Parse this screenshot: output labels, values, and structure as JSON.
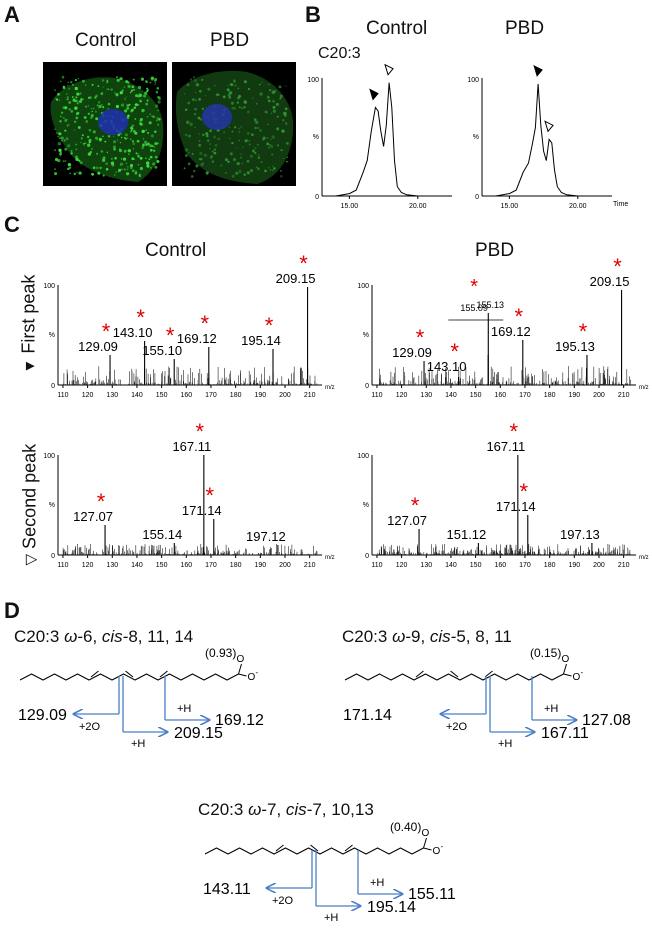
{
  "panels": {
    "A": {
      "letter": "A",
      "images": [
        {
          "title": "Control",
          "membrane_color": "#1a7a1a",
          "nucleus_color": "#1f2fb0",
          "spot_color": "#3ee23e"
        },
        {
          "title": "PBD",
          "membrane_color": "#1f6a1f",
          "nucleus_color": "#2535a8",
          "spot_color": "#2f9a2f"
        }
      ]
    },
    "B": {
      "letter": "B",
      "label": "C20:3",
      "titles": [
        "Control",
        "PBD"
      ],
      "y_ticks": [
        "100",
        "%",
        "0"
      ],
      "x_ticks": [
        "15.00",
        "20.00"
      ],
      "x_unit": "Time"
    },
    "C": {
      "letter": "C",
      "titles": [
        "Control",
        "PBD"
      ],
      "row_labels": [
        "First peak",
        "Second peak"
      ],
      "y_ticks": [
        "100",
        "%",
        "0"
      ],
      "x_unit": "m/z",
      "star": "*",
      "inset_label": "155.13",
      "inset_peak": "155.09"
    },
    "D": {
      "letter": "D",
      "structures": [
        {
          "title_parts": [
            "C20:3 ",
            "ω",
            "-6, ",
            "cis",
            "-8, 11, 14"
          ],
          "score": "(0.93)",
          "left_ion": "129.09",
          "right_ion": "169.12",
          "bottom_ion": "209.15",
          "left_mod": "+2O",
          "right_mod": "+H",
          "bottom_mod": "+H"
        },
        {
          "title_parts": [
            "C20:3 ",
            "ω",
            "-9, ",
            "cis",
            "-5, 8, 11"
          ],
          "score": "(0.15)",
          "left_ion": "171.14",
          "right_ion": "127.08",
          "bottom_ion": "167.11",
          "left_mod": "+2O",
          "right_mod": "+H",
          "bottom_mod": "+H"
        },
        {
          "title_parts": [
            "C20:3 ",
            "ω",
            "-7, ",
            "cis",
            "-7, 10,13"
          ],
          "score": "(0.40)",
          "left_ion": "143.11",
          "right_ion": "155.11",
          "bottom_ion": "195.14",
          "left_mod": "+2O",
          "right_mod": "+H",
          "bottom_mod": "+H"
        }
      ],
      "carboxylate": {
        "O": "O",
        "charge": "-"
      }
    }
  },
  "chart_data": [
    {
      "type": "line",
      "title": "Control",
      "x": [
        13.0,
        14.0,
        15.0,
        15.5,
        16.0,
        16.3,
        16.6,
        16.9,
        17.1,
        17.3,
        17.5,
        17.7,
        17.9,
        18.1,
        18.3,
        18.5,
        18.8,
        19.2,
        20.0,
        21.0,
        22.0
      ],
      "values": [
        0,
        0,
        2,
        5,
        20,
        30,
        55,
        75,
        72,
        55,
        42,
        60,
        96,
        75,
        30,
        8,
        3,
        1,
        0,
        0,
        0
      ],
      "xlim": [
        13,
        22.5
      ],
      "ylim": [
        0,
        100
      ],
      "markers": [
        {
          "kind": "filled",
          "x": 16.8
        },
        {
          "kind": "open",
          "x": 17.9
        }
      ]
    },
    {
      "type": "line",
      "title": "PBD",
      "x": [
        13.0,
        14.0,
        15.0,
        15.5,
        16.0,
        16.4,
        16.7,
        16.9,
        17.1,
        17.3,
        17.5,
        17.7,
        17.9,
        18.1,
        18.3,
        18.5,
        18.8,
        19.2,
        20.0,
        21.0,
        22.0
      ],
      "values": [
        0,
        0,
        2,
        5,
        20,
        28,
        45,
        58,
        95,
        60,
        38,
        30,
        48,
        45,
        22,
        8,
        3,
        1,
        0,
        0,
        0
      ],
      "xlim": [
        13,
        22.5
      ],
      "ylim": [
        0,
        100
      ],
      "markers": [
        {
          "kind": "filled",
          "x": 17.1
        },
        {
          "kind": "open",
          "x": 17.9
        }
      ]
    },
    {
      "type": "bar",
      "title": "Control",
      "series": "First peak",
      "xlim": [
        108,
        215
      ],
      "ylim": [
        0,
        100
      ],
      "x_ticks": [
        110,
        120,
        130,
        140,
        150,
        160,
        170,
        180,
        190,
        200,
        210
      ],
      "peaks": [
        {
          "mz": 129.09,
          "value": 30,
          "star": true
        },
        {
          "mz": 143.1,
          "value": 44,
          "star": true
        },
        {
          "mz": 155.1,
          "value": 26,
          "star": true
        },
        {
          "mz": 169.12,
          "value": 38,
          "star": true
        },
        {
          "mz": 195.14,
          "value": 36,
          "star": true
        },
        {
          "mz": 209.15,
          "value": 98,
          "star": true
        }
      ]
    },
    {
      "type": "bar",
      "title": "PBD",
      "series": "First peak",
      "xlim": [
        108,
        215
      ],
      "ylim": [
        0,
        100
      ],
      "x_ticks": [
        110,
        120,
        130,
        140,
        150,
        160,
        170,
        180,
        190,
        200,
        210
      ],
      "peaks": [
        {
          "mz": 129.09,
          "value": 24,
          "star": true
        },
        {
          "mz": 143.1,
          "value": 8,
          "star": true
        },
        {
          "mz": 155.13,
          "value": 72,
          "star": false
        },
        {
          "mz": 155.09,
          "value": 30,
          "star": true
        },
        {
          "mz": 169.12,
          "value": 45,
          "star": true
        },
        {
          "mz": 195.13,
          "value": 30,
          "star": true
        },
        {
          "mz": 209.15,
          "value": 95,
          "star": true
        }
      ]
    },
    {
      "type": "bar",
      "title": "Control",
      "series": "Second peak",
      "xlim": [
        108,
        215
      ],
      "ylim": [
        0,
        100
      ],
      "x_ticks": [
        110,
        120,
        130,
        140,
        150,
        160,
        170,
        180,
        190,
        200,
        210
      ],
      "peaks": [
        {
          "mz": 127.07,
          "value": 30,
          "star": true
        },
        {
          "mz": 155.14,
          "value": 12,
          "star": false
        },
        {
          "mz": 167.11,
          "value": 100,
          "star": true
        },
        {
          "mz": 171.14,
          "value": 36,
          "star": true
        },
        {
          "mz": 197.12,
          "value": 10,
          "star": false
        }
      ]
    },
    {
      "type": "bar",
      "title": "PBD",
      "series": "Second peak",
      "xlim": [
        108,
        215
      ],
      "ylim": [
        0,
        100
      ],
      "x_ticks": [
        110,
        120,
        130,
        140,
        150,
        160,
        170,
        180,
        190,
        200,
        210
      ],
      "peaks": [
        {
          "mz": 127.07,
          "value": 26,
          "star": true
        },
        {
          "mz": 151.12,
          "value": 12,
          "star": false
        },
        {
          "mz": 167.11,
          "value": 100,
          "star": true
        },
        {
          "mz": 171.14,
          "value": 40,
          "star": true
        },
        {
          "mz": 197.13,
          "value": 12,
          "star": false
        }
      ]
    }
  ]
}
